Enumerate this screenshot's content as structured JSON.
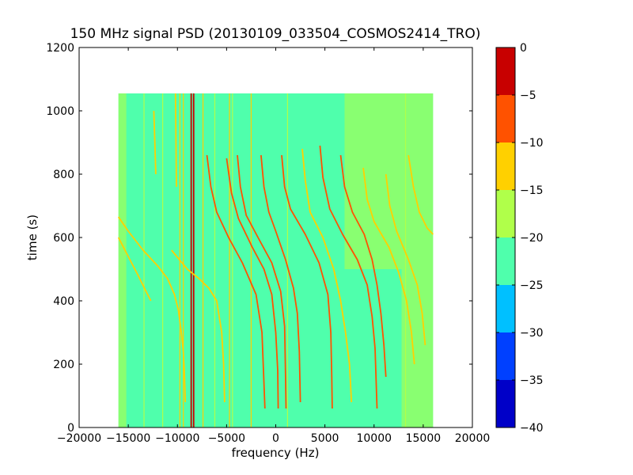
{
  "chart_data": {
    "type": "heatmap",
    "title": "150 MHz signal PSD (20130109_033504_COSMOS2414_TRO)",
    "xlabel": "frequency (Hz)",
    "ylabel": "time (s)",
    "xlim": [
      -20000,
      20000
    ],
    "ylim": [
      0,
      1200
    ],
    "grid": false,
    "data_extent": {
      "x": [
        -16000,
        16000
      ],
      "y": [
        0,
        1055
      ]
    },
    "background_level": -22,
    "x_ticks": [
      {
        "value": -20000,
        "label": "−20000"
      },
      {
        "value": -15000,
        "label": "−15000"
      },
      {
        "value": -10000,
        "label": "−10000"
      },
      {
        "value": -5000,
        "label": "−5000"
      },
      {
        "value": 0,
        "label": "0"
      },
      {
        "value": 5000,
        "label": "5000"
      },
      {
        "value": 10000,
        "label": "10000"
      },
      {
        "value": 15000,
        "label": "15000"
      },
      {
        "value": 20000,
        "label": "20000"
      }
    ],
    "y_ticks": [
      {
        "value": 0,
        "label": "0"
      },
      {
        "value": 200,
        "label": "200"
      },
      {
        "value": 400,
        "label": "400"
      },
      {
        "value": 600,
        "label": "600"
      },
      {
        "value": 800,
        "label": "800"
      },
      {
        "value": 1000,
        "label": "1000"
      },
      {
        "value": 1200,
        "label": "1200"
      }
    ],
    "colorbar": {
      "min": -40,
      "max": 0,
      "levels": [
        {
          "from": -40,
          "to": -35,
          "color": "#0000c8"
        },
        {
          "from": -35,
          "to": -30,
          "color": "#0040ff"
        },
        {
          "from": -30,
          "to": -25,
          "color": "#00c0ff"
        },
        {
          "from": -25,
          "to": -20,
          "color": "#4fffac"
        },
        {
          "from": -20,
          "to": -15,
          "color": "#b0ff4a"
        },
        {
          "from": -15,
          "to": -10,
          "color": "#ffd000"
        },
        {
          "from": -10,
          "to": -5,
          "color": "#ff5200"
        },
        {
          "from": -5,
          "to": 0,
          "color": "#c80000"
        }
      ],
      "ticks": [
        {
          "value": 0,
          "label": "0"
        },
        {
          "value": -5,
          "label": "−5"
        },
        {
          "value": -10,
          "label": "−10"
        },
        {
          "value": -15,
          "label": "−15"
        },
        {
          "value": -20,
          "label": "−20"
        },
        {
          "value": -25,
          "label": "−25"
        },
        {
          "value": -30,
          "label": "−30"
        },
        {
          "value": -35,
          "label": "−35"
        },
        {
          "value": -40,
          "label": "−40"
        }
      ]
    },
    "band_regions": [
      {
        "x": [
          -16000,
          -15200
        ],
        "y": [
          0,
          1055
        ],
        "level": -17
      },
      {
        "x": [
          7000,
          16000
        ],
        "y": [
          500,
          1055
        ],
        "level": -17
      },
      {
        "x": [
          12800,
          16000
        ],
        "y": [
          0,
          500
        ],
        "level": -17
      }
    ],
    "vertical_lines": [
      {
        "x": -8600,
        "y": [
          0,
          1055
        ],
        "level": -2
      },
      {
        "x": -8350,
        "y": [
          0,
          1055
        ],
        "level": -2
      },
      {
        "x": -9400,
        "y": [
          0,
          1055
        ],
        "level": -13
      },
      {
        "x": -9750,
        "y": [
          0,
          1055
        ],
        "level": -13
      },
      {
        "x": -7400,
        "y": [
          0,
          1055
        ],
        "level": -13
      },
      {
        "x": -4700,
        "y": [
          0,
          1055
        ],
        "level": -13
      },
      {
        "x": -4400,
        "y": [
          0,
          1055
        ],
        "level": -17
      },
      {
        "x": -2500,
        "y": [
          0,
          1055
        ],
        "level": -13
      },
      {
        "x": -13400,
        "y": [
          0,
          1055
        ],
        "level": -17
      },
      {
        "x": -11500,
        "y": [
          0,
          1055
        ],
        "level": -17
      },
      {
        "x": -6200,
        "y": [
          0,
          1055
        ],
        "level": -17
      },
      {
        "x": 1200,
        "y": [
          0,
          1055
        ],
        "level": -17
      },
      {
        "x": 13200,
        "y": [
          0,
          1055
        ],
        "level": -17
      }
    ],
    "traces": [
      {
        "level": -12,
        "points": [
          [
            -16000,
            665
          ],
          [
            -15000,
            620
          ],
          [
            -13500,
            560
          ],
          [
            -12000,
            510
          ],
          [
            -11000,
            470
          ],
          [
            -10300,
            420
          ],
          [
            -9900,
            370
          ],
          [
            -9600,
            300
          ],
          [
            -9400,
            240
          ],
          [
            -9300,
            180
          ],
          [
            -9200,
            80
          ]
        ]
      },
      {
        "level": -13,
        "points": [
          [
            -16000,
            600
          ],
          [
            -15000,
            540
          ],
          [
            -14000,
            480
          ],
          [
            -13200,
            430
          ],
          [
            -12700,
            400
          ]
        ]
      },
      {
        "level": -14,
        "points": [
          [
            -10600,
            560
          ],
          [
            -9000,
            500
          ],
          [
            -7800,
            470
          ],
          [
            -6800,
            440
          ],
          [
            -6000,
            400
          ],
          [
            -5500,
            300
          ],
          [
            -5300,
            200
          ],
          [
            -5200,
            80
          ]
        ]
      },
      {
        "level": -9,
        "points": [
          [
            -7000,
            860
          ],
          [
            -6600,
            760
          ],
          [
            -6000,
            680
          ],
          [
            -4800,
            600
          ],
          [
            -3400,
            520
          ],
          [
            -2000,
            420
          ],
          [
            -1400,
            300
          ],
          [
            -1200,
            140
          ],
          [
            -1100,
            60
          ]
        ]
      },
      {
        "level": -8,
        "points": [
          [
            -5000,
            850
          ],
          [
            -4500,
            740
          ],
          [
            -3800,
            660
          ],
          [
            -2400,
            570
          ],
          [
            -1200,
            500
          ],
          [
            -400,
            420
          ],
          [
            0,
            300
          ],
          [
            200,
            180
          ],
          [
            250,
            60
          ]
        ]
      },
      {
        "level": -7,
        "points": [
          [
            -1500,
            860
          ],
          [
            -1200,
            760
          ],
          [
            -700,
            680
          ],
          [
            0,
            620
          ],
          [
            1000,
            530
          ],
          [
            1800,
            440
          ],
          [
            2200,
            360
          ],
          [
            2400,
            240
          ],
          [
            2500,
            80
          ]
        ]
      },
      {
        "level": -8,
        "points": [
          [
            -3900,
            860
          ],
          [
            -3600,
            760
          ],
          [
            -3000,
            670
          ],
          [
            -1800,
            600
          ],
          [
            -400,
            520
          ],
          [
            500,
            430
          ],
          [
            900,
            320
          ],
          [
            1000,
            160
          ],
          [
            1050,
            60
          ]
        ]
      },
      {
        "level": -9,
        "points": [
          [
            600,
            860
          ],
          [
            900,
            760
          ],
          [
            1500,
            690
          ],
          [
            3000,
            610
          ],
          [
            4400,
            520
          ],
          [
            5300,
            420
          ],
          [
            5600,
            300
          ],
          [
            5700,
            160
          ],
          [
            5750,
            60
          ]
        ]
      },
      {
        "level": -11,
        "points": [
          [
            2700,
            880
          ],
          [
            3000,
            780
          ],
          [
            3500,
            680
          ],
          [
            4800,
            600
          ],
          [
            5900,
            500
          ],
          [
            6600,
            400
          ],
          [
            7100,
            300
          ],
          [
            7500,
            200
          ],
          [
            7700,
            80
          ]
        ]
      },
      {
        "level": -8,
        "points": [
          [
            4500,
            890
          ],
          [
            4800,
            790
          ],
          [
            5500,
            690
          ],
          [
            6800,
            610
          ],
          [
            8300,
            530
          ],
          [
            9300,
            450
          ],
          [
            9800,
            350
          ],
          [
            10100,
            250
          ],
          [
            10200,
            160
          ],
          [
            10300,
            60
          ]
        ]
      },
      {
        "level": -9,
        "points": [
          [
            6600,
            860
          ],
          [
            7000,
            760
          ],
          [
            7800,
            680
          ],
          [
            9000,
            610
          ],
          [
            9800,
            530
          ],
          [
            10300,
            450
          ],
          [
            10700,
            360
          ],
          [
            11000,
            260
          ],
          [
            11200,
            160
          ]
        ]
      },
      {
        "level": -12,
        "points": [
          [
            8900,
            820
          ],
          [
            9300,
            720
          ],
          [
            10000,
            650
          ],
          [
            11500,
            570
          ],
          [
            12500,
            490
          ],
          [
            13300,
            400
          ],
          [
            13800,
            300
          ],
          [
            14100,
            200
          ]
        ]
      },
      {
        "level": -13,
        "points": [
          [
            11200,
            800
          ],
          [
            11600,
            700
          ],
          [
            12300,
            620
          ],
          [
            13500,
            530
          ],
          [
            14400,
            450
          ],
          [
            14900,
            360
          ],
          [
            15200,
            260
          ]
        ]
      },
      {
        "level": -12,
        "points": [
          [
            13500,
            860
          ],
          [
            14000,
            760
          ],
          [
            14600,
            680
          ],
          [
            15400,
            630
          ],
          [
            16000,
            610
          ]
        ]
      },
      {
        "level": -14,
        "points": [
          [
            -12400,
            1000
          ],
          [
            -12300,
            900
          ],
          [
            -12200,
            800
          ]
        ]
      },
      {
        "level": -14,
        "points": [
          [
            -10200,
            1055
          ],
          [
            -10150,
            900
          ],
          [
            -10100,
            760
          ]
        ]
      }
    ]
  }
}
